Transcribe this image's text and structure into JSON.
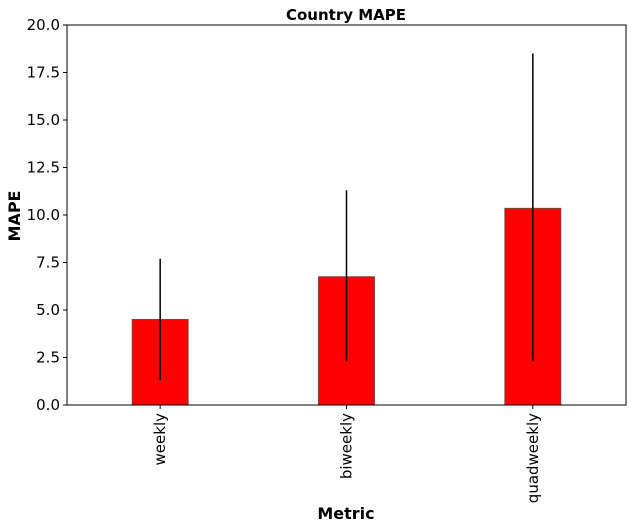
{
  "chart_data": {
    "type": "bar",
    "title": "Country MAPE",
    "xlabel": "Metric",
    "ylabel": "MAPE",
    "categories": [
      "weekly",
      "biweekly",
      "quadweekly"
    ],
    "values": [
      4.5,
      6.75,
      10.35
    ],
    "error_low": [
      1.3,
      2.3,
      2.3
    ],
    "error_high": [
      7.7,
      11.3,
      18.5
    ],
    "ylim": [
      0,
      20
    ],
    "yticks": [
      "0.0",
      "2.5",
      "5.0",
      "7.5",
      "10.0",
      "12.5",
      "15.0",
      "17.5",
      "20.0"
    ],
    "grid": false,
    "colors": {
      "bar": "#ff0000",
      "bar_edge": "#7f3f3f",
      "error": "#000000"
    }
  }
}
